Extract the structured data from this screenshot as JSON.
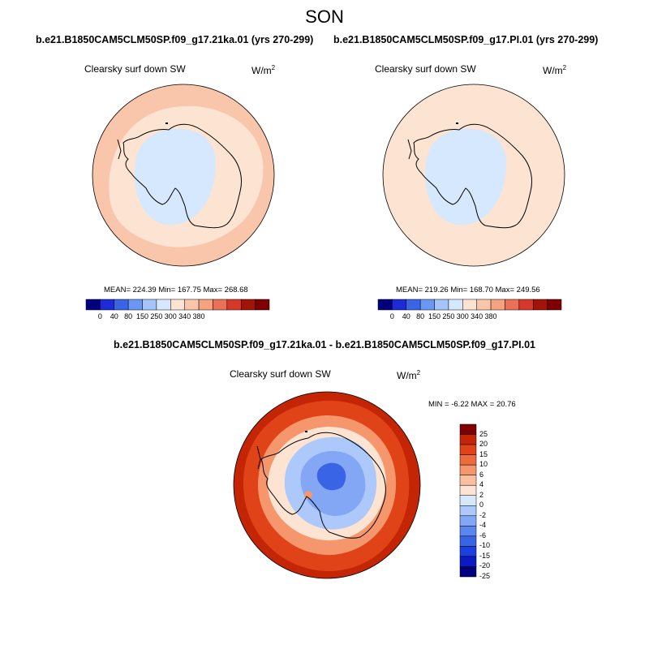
{
  "figure": {
    "title": "SON",
    "variable": "Clearsky surf down SW",
    "unit_base": "W/m",
    "unit_exp": "2"
  },
  "panels": [
    {
      "id": "ka21",
      "case_title": "b.e21.B1850CAM5CLM50SP.f09_g17.21ka.01 (yrs 270-299)",
      "stats": "MEAN= 224.39  Min= 167.75  Max= 268.68",
      "outer_color": "#f9c6ac",
      "middle_color": "#fde3d2",
      "inner_color": "#d6e8fd"
    },
    {
      "id": "pi",
      "case_title": "b.e21.B1850CAM5CLM50SP.f09_g17.PI.01 (yrs 270-299)",
      "stats": "MEAN= 219.26  Min= 168.70  Max= 249.56",
      "outer_color": "#fde3d2",
      "middle_color": "#fde3d2",
      "inner_color": "#d6e8fd"
    }
  ],
  "difference": {
    "title": "b.e21.B1850CAM5CLM50SP.f09_g17.21ka.01 - b.e21.B1850CAM5CLM50SP.f09_g17.PI.01",
    "stats": "MIN = -6.22  MAX =  20.76"
  },
  "colors": {
    "abs_scale": [
      "#00007f",
      "#1c2bd6",
      "#3a64e6",
      "#6a96f4",
      "#a6c4f9",
      "#d6e8fd",
      "#fde3d2",
      "#f9c6ac",
      "#f5a27f",
      "#ea7155",
      "#d6382a",
      "#a11407",
      "#7f0000"
    ],
    "diff_scale": [
      "#00007f",
      "#0a1bbf",
      "#1c3fe0",
      "#3a64e6",
      "#5a86ef",
      "#83a6f5",
      "#adc8fa",
      "#d6e8fd",
      "#fde3d2",
      "#f9c0a0",
      "#f5966c",
      "#ee6b3e",
      "#e04318",
      "#c42504",
      "#7f0000"
    ]
  },
  "chart_data": [
    {
      "type": "heatmap",
      "title": "b.e21.B1850CAM5CLM50SP.f09_g17.21ka.01 (yrs 270-299)",
      "variable": "Clearsky surf down SW",
      "unit": "W/m2",
      "mean": 224.39,
      "min": 167.75,
      "max": 268.68,
      "colorbar_levels": [
        0,
        40,
        80,
        150,
        250,
        300,
        340,
        380
      ],
      "colorbar_labels": [
        "0",
        "40",
        "80",
        "150",
        "250",
        "300",
        "340",
        "380"
      ]
    },
    {
      "type": "heatmap",
      "title": "b.e21.B1850CAM5CLM50SP.f09_g17.PI.01 (yrs 270-299)",
      "variable": "Clearsky surf down SW",
      "unit": "W/m2",
      "mean": 219.26,
      "min": 168.7,
      "max": 249.56,
      "colorbar_levels": [
        0,
        40,
        80,
        150,
        250,
        300,
        340,
        380
      ],
      "colorbar_labels": [
        "0",
        "40",
        "80",
        "150",
        "250",
        "300",
        "340",
        "380"
      ]
    },
    {
      "type": "heatmap",
      "title": "b.e21.B1850CAM5CLM50SP.f09_g17.21ka.01 - b.e21.B1850CAM5CLM50SP.f09_g17.PI.01",
      "variable": "Clearsky surf down SW",
      "unit": "W/m2",
      "min": -6.22,
      "max": 20.76,
      "colorbar_levels": [
        25,
        20,
        15,
        10,
        6,
        4,
        2,
        0,
        -2,
        -4,
        -6,
        -10,
        -15,
        -20,
        -25
      ],
      "colorbar_labels": [
        "25",
        "20",
        "15",
        "10",
        "6",
        "4",
        "2",
        "0",
        "-2",
        "-4",
        "-6",
        "-10",
        "-15",
        "-20",
        "-25"
      ]
    }
  ]
}
